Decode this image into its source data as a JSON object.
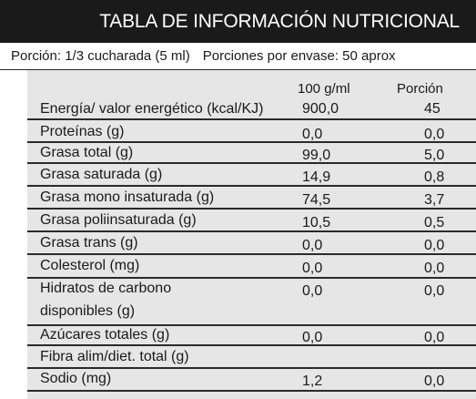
{
  "title": "TABLA DE INFORMACIÓN NUTRICIONAL",
  "serving": {
    "portion": "Porción:  1/3 cucharada (5 ml)",
    "per_container": "Porciones por envase: 50 aprox"
  },
  "columns": {
    "per_100": "100 g/ml",
    "per_portion": "Porción"
  },
  "rows": [
    {
      "label": "Energía/ valor energético  (kcal/KJ)",
      "per_100": "900,0",
      "per_portion": "45"
    },
    {
      "label": "Proteínas (g)",
      "per_100": "0,0",
      "per_portion": "0,0"
    },
    {
      "label": "Grasa  total (g)",
      "per_100": "99,0",
      "per_portion": "5,0"
    },
    {
      "label": "Grasa saturada (g)",
      "per_100": "14,9",
      "per_portion": "0,8"
    },
    {
      "label": "Grasa mono insaturada (g)",
      "per_100": "74,5",
      "per_portion": "3,7"
    },
    {
      "label": "Grasa poliinsaturada (g)",
      "per_100": "10,5",
      "per_portion": "0,5"
    },
    {
      "label": "Grasa trans (g)",
      "per_100": "0,0",
      "per_portion": "0,0"
    },
    {
      "label": "Colesterol (mg)",
      "per_100": "0,0",
      "per_portion": "0,0"
    },
    {
      "label": "Hidratos de carbono",
      "label2": "disponibles (g)",
      "per_100": "0,0",
      "per_portion": "0,0"
    },
    {
      "label": "Azúcares totales (g)",
      "per_100": "0,0",
      "per_portion": "0,0"
    },
    {
      "label": "Fibra alim/diet. total (g)",
      "per_100": "",
      "per_portion": ""
    },
    {
      "label": "Sodio (mg)",
      "per_100": "1,2",
      "per_portion": "0,0"
    }
  ]
}
